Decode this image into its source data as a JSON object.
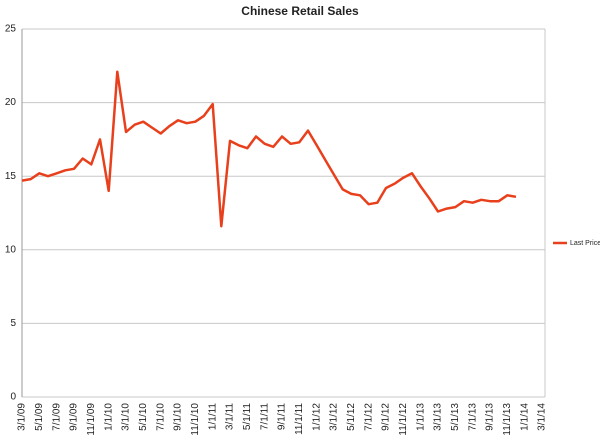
{
  "chart_data": {
    "type": "line",
    "title": "Chinese Retail Sales",
    "categories": [
      "3/1/09",
      null,
      "5/1/09",
      null,
      "7/1/09",
      null,
      "9/1/09",
      null,
      "11/1/09",
      null,
      "1/1/10",
      null,
      "3/1/10",
      null,
      "5/1/10",
      null,
      "7/1/10",
      null,
      "9/1/10",
      null,
      "11/1/10",
      null,
      "1/1/11",
      null,
      "3/1/11",
      null,
      "5/1/11",
      null,
      "7/1/11",
      null,
      "9/1/11",
      null,
      "11/1/11",
      null,
      "1/1/12",
      null,
      "3/1/12",
      null,
      "5/1/12",
      null,
      "7/1/12",
      null,
      "9/1/12",
      null,
      "11/1/12",
      null,
      "1/1/13",
      null,
      "3/1/13",
      null,
      "5/1/13",
      null,
      "7/1/13",
      null,
      "9/1/13",
      null,
      "11/1/13",
      null,
      "1/1/14",
      null,
      "3/1/14"
    ],
    "series": [
      {
        "name": "Last Price",
        "color": "#e8401c",
        "values": [
          14.7,
          14.8,
          15.2,
          15.0,
          15.2,
          15.4,
          15.5,
          16.2,
          15.8,
          17.5,
          14.0,
          22.1,
          18.0,
          18.5,
          18.7,
          18.3,
          17.9,
          18.4,
          18.8,
          18.6,
          18.7,
          19.1,
          19.9,
          11.6,
          17.4,
          17.1,
          16.9,
          17.7,
          17.2,
          17.0,
          17.7,
          17.2,
          17.3,
          18.1,
          17.1,
          16.1,
          15.1,
          14.1,
          13.8,
          13.7,
          13.1,
          13.2,
          14.2,
          14.5,
          14.9,
          15.2,
          14.3,
          13.5,
          12.6,
          12.8,
          12.9,
          13.3,
          13.2,
          13.4,
          13.3,
          13.3,
          13.7,
          13.6,
          null,
          null,
          null
        ]
      }
    ],
    "ylim": [
      0,
      25
    ],
    "yticks": [
      0,
      5,
      10,
      15,
      20,
      25
    ],
    "grid": true,
    "legend": "right"
  }
}
